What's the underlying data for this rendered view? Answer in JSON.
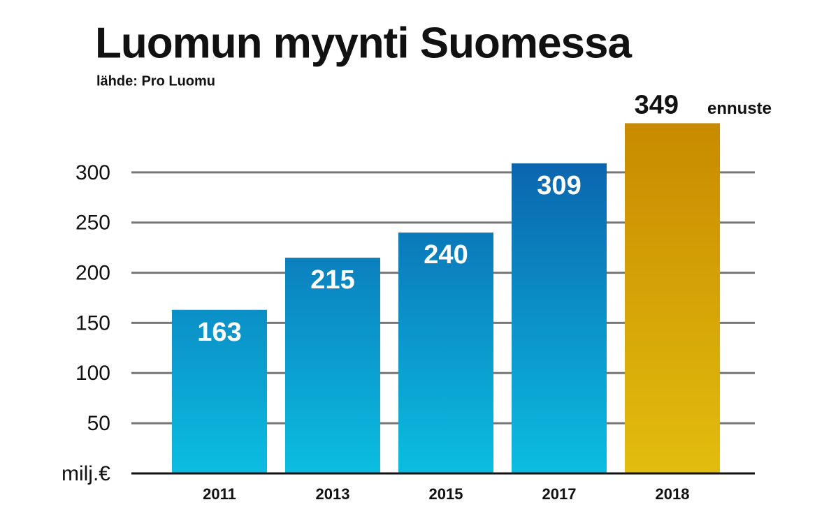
{
  "chart_data": {
    "type": "bar",
    "title": "Luomun myynti Suomessa",
    "subtitle": "lähde: Pro Luomu",
    "categories": [
      "2011",
      "2013",
      "2015",
      "2017",
      "2018"
    ],
    "values": [
      163,
      215,
      240,
      309,
      349
    ],
    "annotation": "ennuste",
    "colors": [
      [
        "#0b5aa8",
        "#0bbde0"
      ],
      [
        "#0b5aa8",
        "#0bbde0"
      ],
      [
        "#0b5aa8",
        "#0bbde0"
      ],
      [
        "#0b5aa8",
        "#0bbde0"
      ],
      [
        "#c88a00",
        "#e2bd0e"
      ]
    ],
    "ylim": [
      0,
      350
    ],
    "yticks": [
      {
        "value": 0,
        "label": "milj.€"
      },
      50,
      100,
      150,
      200,
      250,
      300
    ],
    "grid": true
  }
}
